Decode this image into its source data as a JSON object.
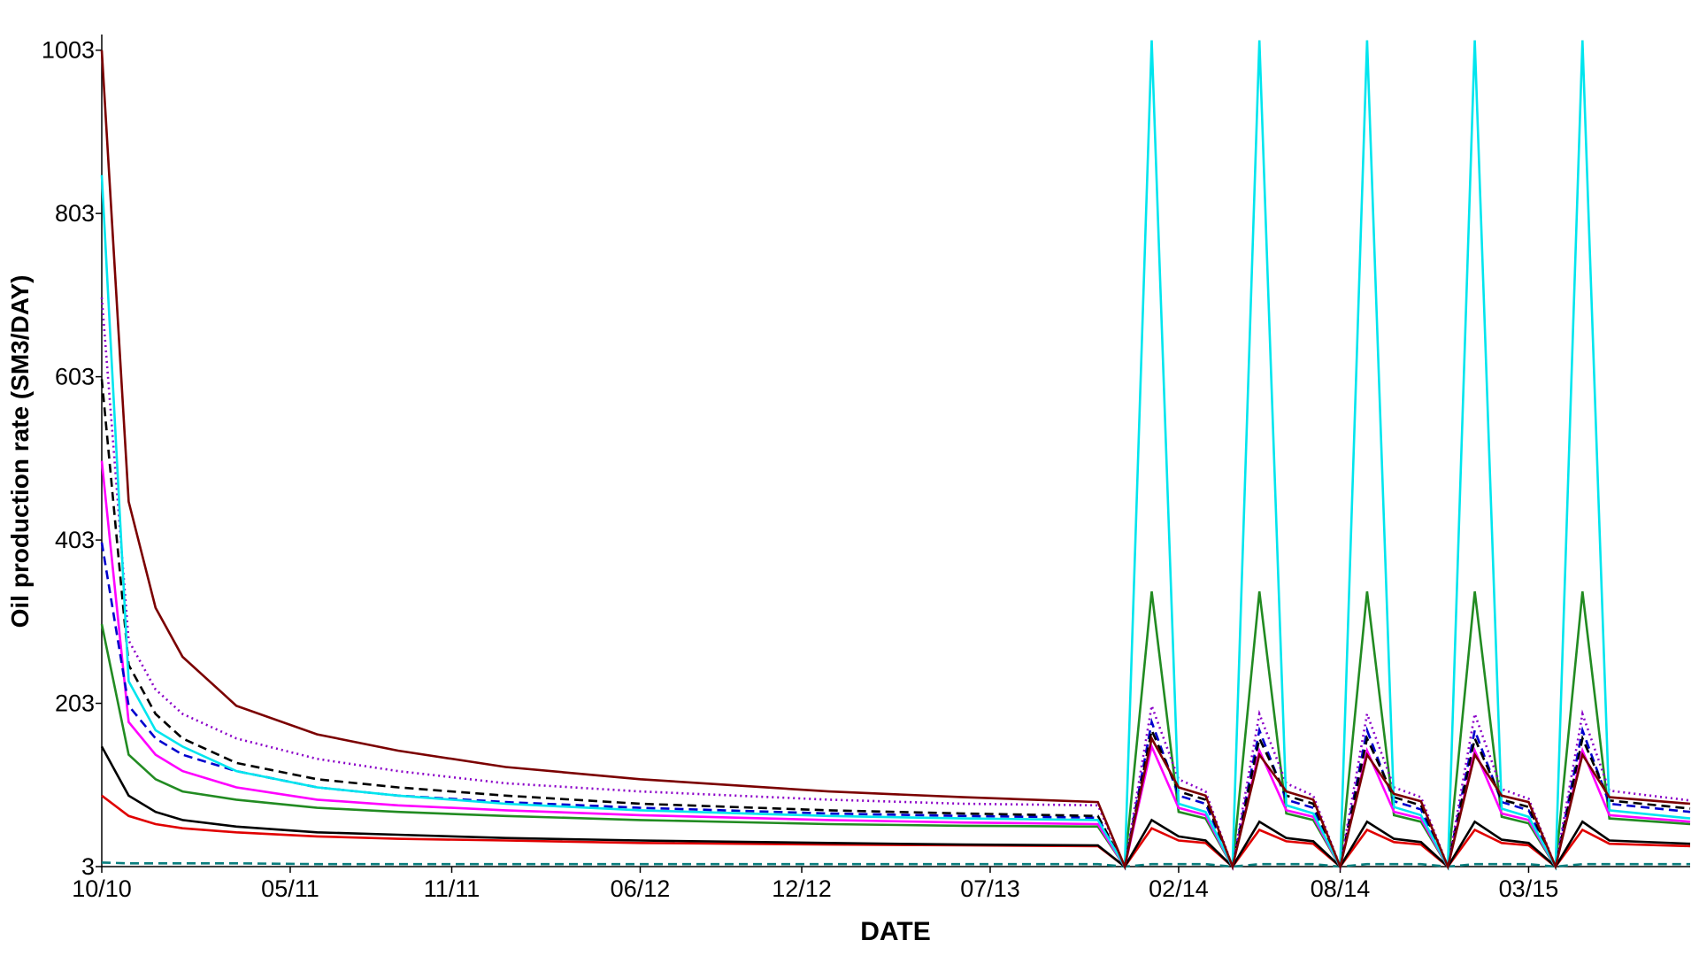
{
  "chart_data": {
    "type": "line",
    "xlabel": "DATE",
    "ylabel": "Oil production rate (SM3/DAY)",
    "x": [
      "2010-10",
      "2010-11",
      "2010-12",
      "2011-01",
      "2011-03",
      "2011-06",
      "2011-09",
      "2012-01",
      "2012-06",
      "2013-01",
      "2013-06",
      "2013-11",
      "2013-12",
      "2014-01",
      "2014-02",
      "2014-03",
      "2014-04",
      "2014-05",
      "2014-06",
      "2014-07",
      "2014-08",
      "2014-09",
      "2014-10",
      "2014-11",
      "2014-12",
      "2015-01",
      "2015-02",
      "2015-03",
      "2015-04",
      "2015-05",
      "2015-06",
      "2015-09"
    ],
    "xlim": [
      "2010-10",
      "2015-09"
    ],
    "xticks": [
      {
        "value": "2010-10",
        "label": "10/10"
      },
      {
        "value": "2011-05",
        "label": "05/11"
      },
      {
        "value": "2011-11",
        "label": "11/11"
      },
      {
        "value": "2012-06",
        "label": "06/12"
      },
      {
        "value": "2012-12",
        "label": "12/12"
      },
      {
        "value": "2013-07",
        "label": "07/13"
      },
      {
        "value": "2014-02",
        "label": "02/14"
      },
      {
        "value": "2014-08",
        "label": "08/14"
      },
      {
        "value": "2015-03",
        "label": "03/15"
      }
    ],
    "ylim": [
      3,
      1020
    ],
    "yticks": [
      3,
      203,
      403,
      603,
      803,
      1003
    ],
    "series": [
      {
        "color": "#0a7f7f",
        "dash": "dashed",
        "values": [
          8,
          7,
          7,
          7,
          7,
          6,
          6,
          6,
          6,
          6,
          6,
          6,
          3,
          6,
          6,
          6,
          3,
          6,
          6,
          6,
          3,
          6,
          6,
          6,
          3,
          6,
          6,
          6,
          3,
          6,
          6,
          6
        ]
      },
      {
        "color": "#e00000",
        "dash": "solid",
        "values": [
          90,
          65,
          55,
          50,
          45,
          40,
          37,
          35,
          32,
          30,
          29,
          28,
          3,
          50,
          35,
          32,
          3,
          48,
          34,
          31,
          3,
          48,
          33,
          30,
          3,
          48,
          32,
          29,
          3,
          48,
          31,
          28
        ]
      },
      {
        "color": "#000000",
        "dash": "solid",
        "values": [
          150,
          90,
          70,
          60,
          52,
          45,
          42,
          38,
          35,
          32,
          30,
          29,
          3,
          60,
          40,
          35,
          3,
          58,
          38,
          34,
          3,
          58,
          37,
          33,
          3,
          58,
          36,
          32,
          3,
          58,
          35,
          31
        ]
      },
      {
        "color": "#228b22",
        "dash": "solid",
        "values": [
          300,
          140,
          110,
          95,
          85,
          75,
          70,
          65,
          60,
          55,
          53,
          52,
          3,
          340,
          70,
          62,
          3,
          340,
          68,
          60,
          3,
          340,
          66,
          58,
          3,
          340,
          64,
          56,
          3,
          340,
          62,
          55
        ]
      },
      {
        "color": "#ff00ff",
        "dash": "solid",
        "values": [
          500,
          180,
          140,
          120,
          100,
          85,
          78,
          72,
          66,
          60,
          57,
          55,
          3,
          150,
          75,
          66,
          3,
          145,
          72,
          64,
          3,
          145,
          70,
          62,
          3,
          145,
          68,
          60,
          3,
          145,
          66,
          58
        ]
      },
      {
        "color": "#0000cd",
        "dash": "dashed",
        "values": [
          400,
          200,
          160,
          140,
          120,
          100,
          90,
          82,
          75,
          68,
          65,
          63,
          3,
          180,
          90,
          80,
          3,
          170,
          85,
          75,
          3,
          170,
          83,
          73,
          3,
          170,
          82,
          72,
          3,
          170,
          80,
          70
        ]
      },
      {
        "color": "#000000",
        "dash": "dashed",
        "values": [
          600,
          250,
          190,
          160,
          130,
          110,
          100,
          90,
          80,
          72,
          68,
          65,
          3,
          170,
          95,
          85,
          3,
          160,
          90,
          80,
          3,
          160,
          88,
          78,
          3,
          160,
          85,
          76,
          3,
          160,
          84,
          74
        ]
      },
      {
        "color": "#8b00c8",
        "dash": "dotted",
        "values": [
          700,
          280,
          220,
          190,
          160,
          135,
          120,
          105,
          95,
          85,
          80,
          78,
          3,
          200,
          110,
          95,
          3,
          190,
          105,
          90,
          3,
          190,
          100,
          88,
          3,
          190,
          98,
          86,
          3,
          190,
          96,
          84
        ]
      },
      {
        "color": "#00e5ee",
        "dash": "solid",
        "values": [
          850,
          230,
          170,
          150,
          120,
          100,
          90,
          80,
          72,
          65,
          62,
          60,
          3,
          1015,
          80,
          70,
          3,
          1015,
          78,
          68,
          3,
          1015,
          76,
          66,
          3,
          1015,
          74,
          64,
          3,
          1015,
          72,
          62
        ]
      },
      {
        "color": "#7b0000",
        "dash": "solid",
        "values": [
          1003,
          450,
          320,
          260,
          200,
          165,
          145,
          125,
          110,
          95,
          88,
          82,
          3,
          160,
          100,
          90,
          3,
          140,
          95,
          85,
          3,
          140,
          92,
          83,
          3,
          140,
          90,
          82,
          3,
          140,
          88,
          80
        ]
      }
    ]
  }
}
